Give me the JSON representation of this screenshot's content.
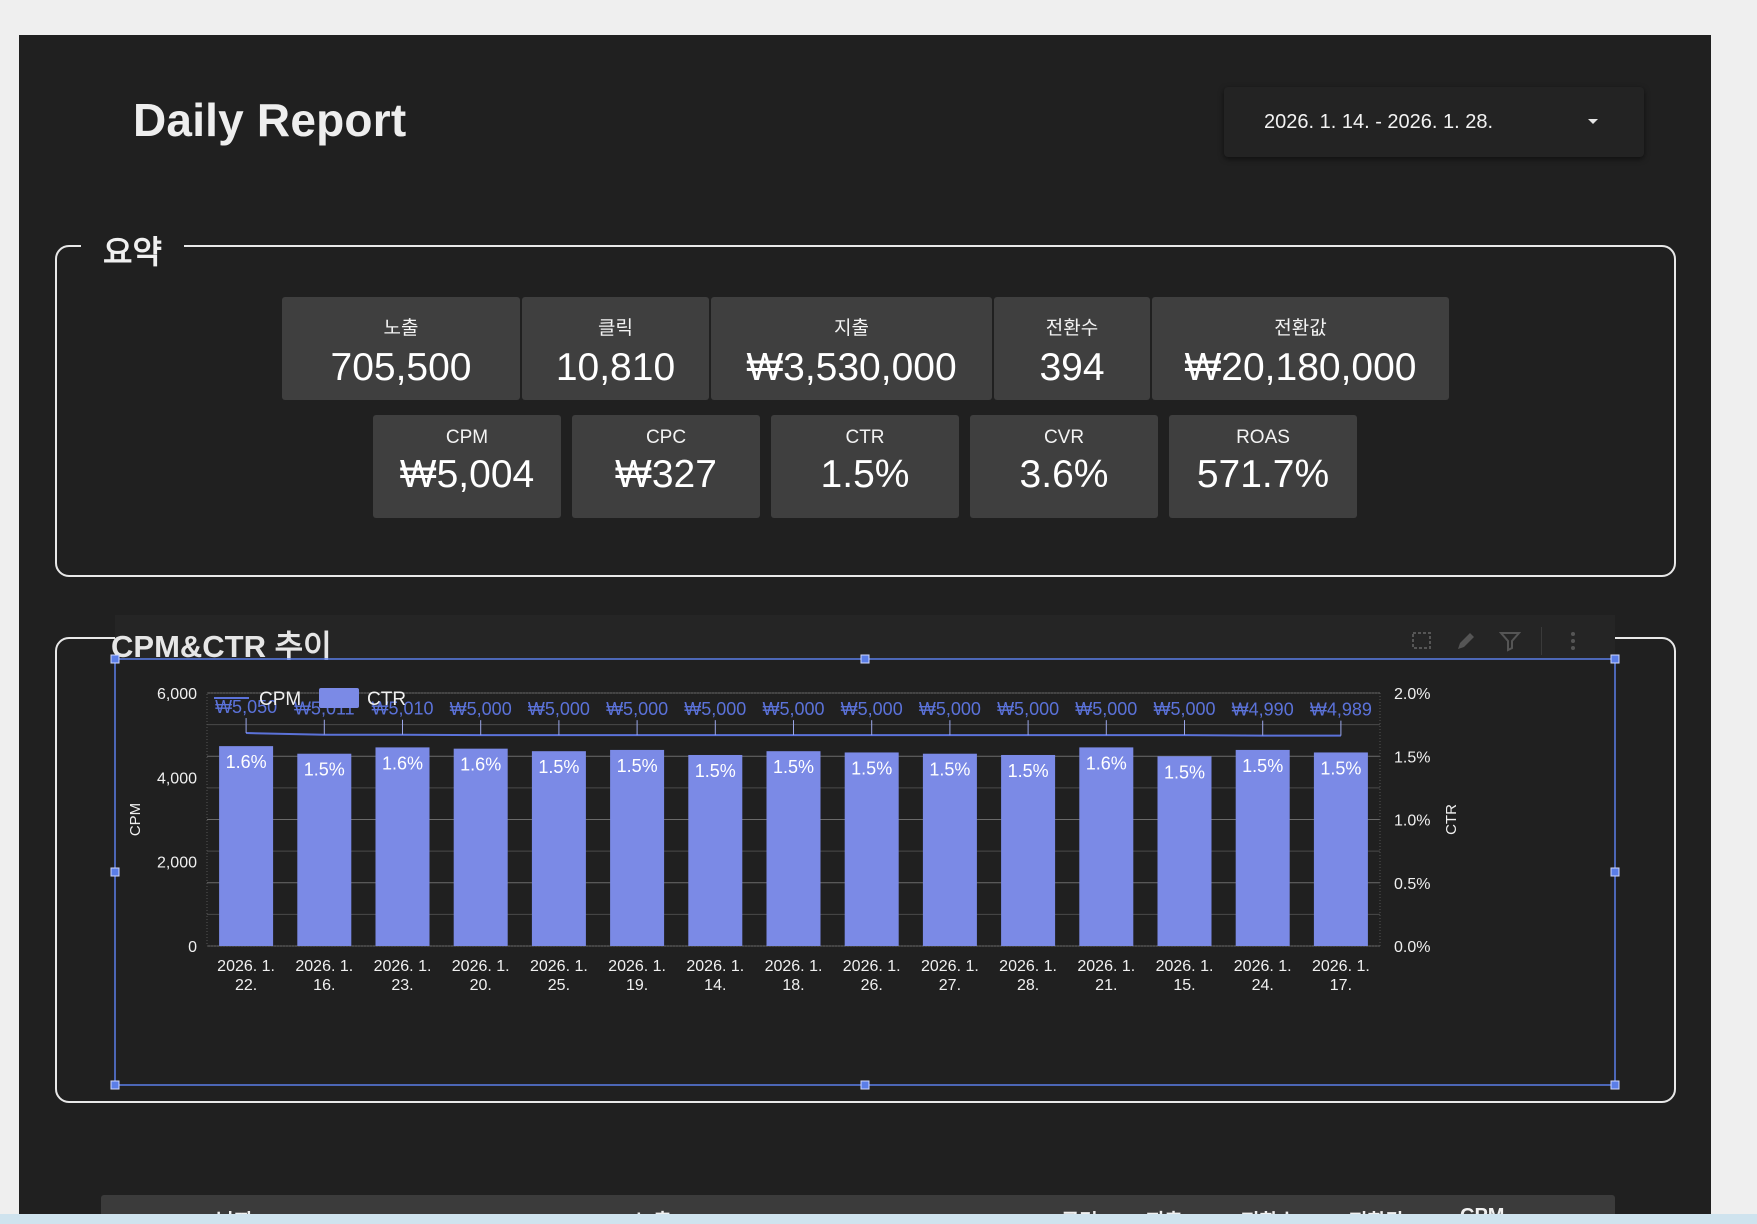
{
  "header": {
    "title": "Daily Report",
    "date_range": "2026. 1. 14. - 2026. 1. 28."
  },
  "summary": {
    "title": "요약",
    "row1": [
      {
        "label": "노출",
        "value": "705,500"
      },
      {
        "label": "클릭",
        "value": "10,810"
      },
      {
        "label": "지출",
        "value": "₩3,530,000"
      },
      {
        "label": "전환수",
        "value": "394"
      },
      {
        "label": "전환값",
        "value": "₩20,180,000"
      }
    ],
    "row2": [
      {
        "label": "CPM",
        "value": "₩5,004"
      },
      {
        "label": "CPC",
        "value": "₩327"
      },
      {
        "label": "CTR",
        "value": "1.5%"
      },
      {
        "label": "CVR",
        "value": "3.6%"
      },
      {
        "label": "ROAS",
        "value": "571.7%"
      }
    ]
  },
  "trend": {
    "title": "CPM&CTR 추이"
  },
  "colors": {
    "bar": "#7b8ae6",
    "line": "#5b72d9",
    "selection": "#5b7ee8"
  },
  "chart_data": {
    "type": "bar",
    "title": "CPM&CTR 추이",
    "categories": [
      [
        "2026. 1.",
        "22."
      ],
      [
        "2026. 1.",
        "16."
      ],
      [
        "2026. 1.",
        "23."
      ],
      [
        "2026. 1.",
        "20."
      ],
      [
        "2026. 1.",
        "25."
      ],
      [
        "2026. 1.",
        "19."
      ],
      [
        "2026. 1.",
        "14."
      ],
      [
        "2026. 1.",
        "18."
      ],
      [
        "2026. 1.",
        "26."
      ],
      [
        "2026. 1.",
        "27."
      ],
      [
        "2026. 1.",
        "28."
      ],
      [
        "2026. 1.",
        "21."
      ],
      [
        "2026. 1.",
        "15."
      ],
      [
        "2026. 1.",
        "24."
      ],
      [
        "2026. 1.",
        "17."
      ]
    ],
    "series": [
      {
        "name": "CPM",
        "type": "line",
        "axis": "left",
        "values": [
          5050,
          5011,
          5010,
          5000,
          5000,
          5000,
          5000,
          5000,
          5000,
          5000,
          5000,
          5000,
          5000,
          4990,
          4989
        ],
        "labels": [
          "₩5,050",
          "₩5,011",
          "₩5,010",
          "₩5,000",
          "₩5,000",
          "₩5,000",
          "₩5,000",
          "₩5,000",
          "₩5,000",
          "₩5,000",
          "₩5,000",
          "₩5,000",
          "₩5,000",
          "₩4,990",
          "₩4,989"
        ]
      },
      {
        "name": "CTR",
        "type": "bar",
        "axis": "right",
        "values": [
          1.58,
          1.52,
          1.57,
          1.56,
          1.54,
          1.55,
          1.51,
          1.54,
          1.53,
          1.52,
          1.51,
          1.57,
          1.5,
          1.55,
          1.53
        ],
        "labels": [
          "1.6%",
          "1.5%",
          "1.6%",
          "1.6%",
          "1.5%",
          "1.5%",
          "1.5%",
          "1.5%",
          "1.5%",
          "1.5%",
          "1.5%",
          "1.6%",
          "1.5%",
          "1.5%",
          "1.5%"
        ]
      }
    ],
    "y_left": {
      "label": "CPM",
      "min": 0,
      "max": 6000,
      "ticks": [
        "0",
        "2,000",
        "4,000",
        "6,000"
      ],
      "tick_values": [
        0,
        2000,
        4000,
        6000
      ]
    },
    "y_right": {
      "label": "CTR",
      "min": 0,
      "max": 2.0,
      "ticks": [
        "0.0%",
        "0.5%",
        "1.0%",
        "1.5%",
        "2.0%"
      ],
      "tick_values": [
        0,
        0.5,
        1.0,
        1.5,
        2.0
      ]
    },
    "legend": [
      "CPM",
      "CTR"
    ],
    "legend_position": "top-left",
    "grid": true
  },
  "table": {
    "headers": [
      "날짜 ▲",
      "노출",
      "클릭",
      "지출",
      "전환수",
      "전환값",
      "CPM"
    ]
  }
}
